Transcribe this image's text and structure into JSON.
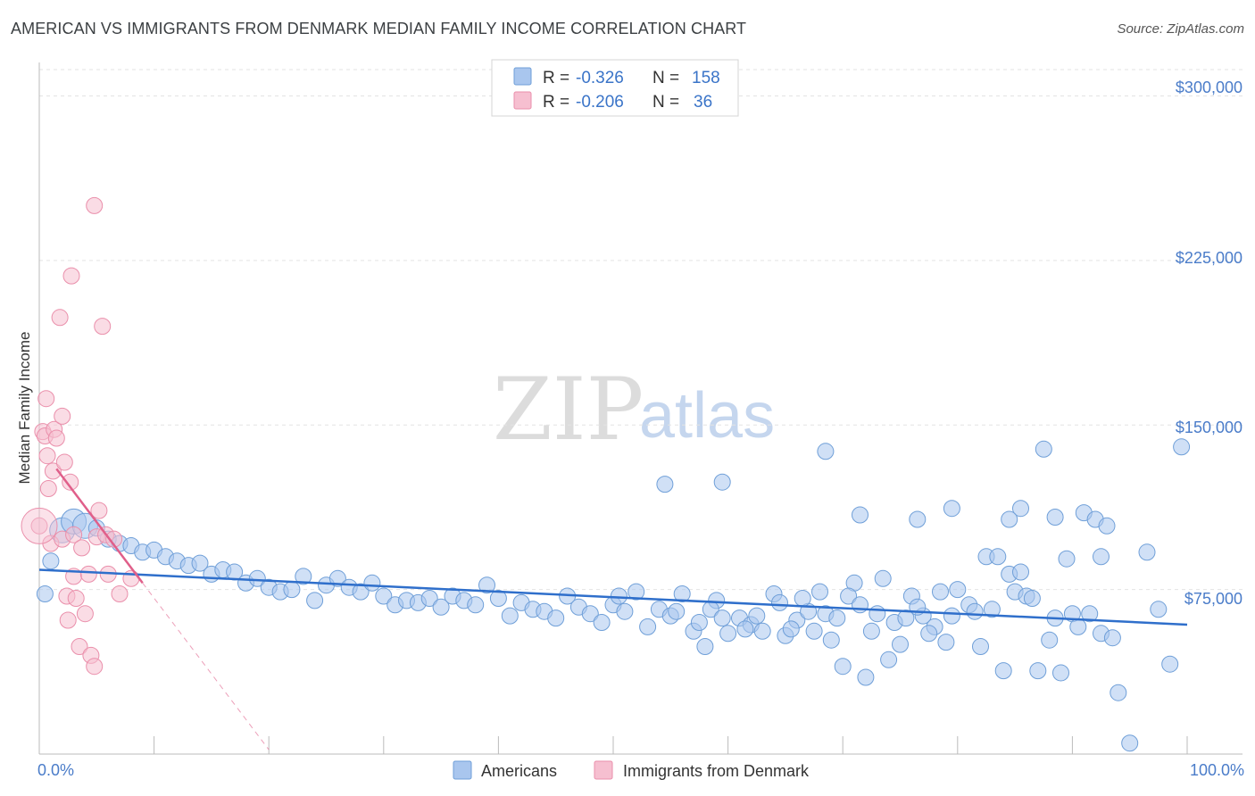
{
  "title": "AMERICAN VS IMMIGRANTS FROM DENMARK MEDIAN FAMILY INCOME CORRELATION CHART",
  "source": "Source: ZipAtlas.com",
  "watermark": {
    "part1": "ZIP",
    "part2": "atlas"
  },
  "legend": {
    "rows": [
      {
        "r_label": "R =",
        "r_value": "-0.326",
        "n_label": "N =",
        "n_value": "158"
      },
      {
        "r_label": "R =",
        "r_value": "-0.206",
        "n_label": "N =",
        "n_value": "36"
      }
    ]
  },
  "bottom_legend": {
    "americans": "Americans",
    "denmark": "Immigrants from Denmark"
  },
  "colors": {
    "blue_fill": "#a9c6ee",
    "blue_stroke": "#6f9fd8",
    "blue_line": "#2f6fcb",
    "pink_fill": "#f6bfd0",
    "pink_stroke": "#ea8fab",
    "pink_line": "#e05f8a",
    "grid": "#e3e3e3",
    "axis_text": "#4a7cc9"
  },
  "chart_data": {
    "type": "scatter",
    "title": "AMERICAN VS IMMIGRANTS FROM DENMARK MEDIAN FAMILY INCOME CORRELATION CHART",
    "xlabel": "",
    "ylabel": "Median Family Income",
    "xlim": [
      0,
      100
    ],
    "ylim": [
      0,
      312000
    ],
    "x_tick_labels": [
      "0.0%",
      "100.0%"
    ],
    "y_ticks": [
      75000,
      150000,
      225000,
      300000
    ],
    "y_tick_labels": [
      "$75,000",
      "$150,000",
      "$225,000",
      "$300,000"
    ],
    "series": [
      {
        "name": "Americans",
        "r": -0.326,
        "n": 158,
        "trend": {
          "x0": 0,
          "y0": 84000,
          "x1": 100,
          "y1": 59000
        },
        "points": [
          [
            0.5,
            73000
          ],
          [
            1,
            88000
          ],
          [
            2,
            102000
          ],
          [
            3,
            106000
          ],
          [
            4,
            104000
          ],
          [
            5,
            103000
          ],
          [
            6,
            98000
          ],
          [
            7,
            96000
          ],
          [
            8,
            95000
          ],
          [
            9,
            92000
          ],
          [
            10,
            93000
          ],
          [
            11,
            90000
          ],
          [
            12,
            88000
          ],
          [
            13,
            86000
          ],
          [
            14,
            87000
          ],
          [
            15,
            82000
          ],
          [
            16,
            84000
          ],
          [
            17,
            83000
          ],
          [
            18,
            78000
          ],
          [
            19,
            80000
          ],
          [
            20,
            76000
          ],
          [
            21,
            74000
          ],
          [
            22,
            75000
          ],
          [
            23,
            81000
          ],
          [
            24,
            70000
          ],
          [
            25,
            77000
          ],
          [
            26,
            80000
          ],
          [
            27,
            76000
          ],
          [
            28,
            74000
          ],
          [
            29,
            78000
          ],
          [
            30,
            72000
          ],
          [
            31,
            68000
          ],
          [
            32,
            70000
          ],
          [
            33,
            69000
          ],
          [
            34,
            71000
          ],
          [
            35,
            67000
          ],
          [
            36,
            72000
          ],
          [
            37,
            70000
          ],
          [
            38,
            68000
          ],
          [
            39,
            77000
          ],
          [
            40,
            71000
          ],
          [
            41,
            63000
          ],
          [
            42,
            69000
          ],
          [
            43,
            66000
          ],
          [
            44,
            65000
          ],
          [
            45,
            62000
          ],
          [
            46,
            72000
          ],
          [
            47,
            67000
          ],
          [
            48,
            64000
          ],
          [
            49,
            60000
          ],
          [
            50,
            68000
          ],
          [
            51,
            65000
          ],
          [
            52,
            74000
          ],
          [
            53,
            58000
          ],
          [
            54,
            66000
          ],
          [
            55,
            63000
          ],
          [
            56,
            73000
          ],
          [
            57,
            56000
          ],
          [
            58,
            49000
          ],
          [
            59,
            70000
          ],
          [
            60,
            55000
          ],
          [
            61,
            62000
          ],
          [
            62,
            59000
          ],
          [
            63,
            56000
          ],
          [
            64,
            73000
          ],
          [
            65,
            54000
          ],
          [
            66,
            61000
          ],
          [
            67,
            65000
          ],
          [
            68,
            74000
          ],
          [
            69,
            52000
          ],
          [
            70,
            40000
          ],
          [
            71,
            78000
          ],
          [
            72,
            35000
          ],
          [
            73,
            64000
          ],
          [
            74,
            43000
          ],
          [
            75,
            50000
          ],
          [
            76,
            72000
          ],
          [
            77,
            63000
          ],
          [
            78,
            58000
          ],
          [
            79,
            51000
          ],
          [
            80,
            75000
          ],
          [
            81,
            68000
          ],
          [
            82,
            49000
          ],
          [
            83,
            66000
          ],
          [
            84,
            38000
          ],
          [
            85,
            74000
          ],
          [
            86,
            72000
          ],
          [
            87,
            38000
          ],
          [
            88,
            52000
          ],
          [
            89,
            37000
          ],
          [
            90,
            64000
          ],
          [
            91,
            110000
          ],
          [
            92,
            107000
          ],
          [
            93,
            104000
          ],
          [
            94,
            28000
          ],
          [
            95,
            5000
          ],
          [
            50.5,
            72000
          ],
          [
            55.5,
            65000
          ],
          [
            57.5,
            60000
          ],
          [
            58.5,
            66000
          ],
          [
            59.5,
            62000
          ],
          [
            61.5,
            57000
          ],
          [
            62.5,
            63000
          ],
          [
            64.5,
            69000
          ],
          [
            65.5,
            57000
          ],
          [
            66.5,
            71000
          ],
          [
            67.5,
            56000
          ],
          [
            68.5,
            64000
          ],
          [
            69.5,
            62000
          ],
          [
            70.5,
            72000
          ],
          [
            71.5,
            68000
          ],
          [
            72.5,
            56000
          ],
          [
            73.5,
            80000
          ],
          [
            74.5,
            60000
          ],
          [
            75.5,
            62000
          ],
          [
            76.5,
            67000
          ],
          [
            77.5,
            55000
          ],
          [
            78.5,
            74000
          ],
          [
            79.5,
            63000
          ],
          [
            81.5,
            65000
          ],
          [
            82.5,
            90000
          ],
          [
            83.5,
            90000
          ],
          [
            84.5,
            82000
          ],
          [
            85.5,
            83000
          ],
          [
            86.5,
            71000
          ],
          [
            88.5,
            62000
          ],
          [
            89.5,
            89000
          ],
          [
            90.5,
            58000
          ],
          [
            91.5,
            64000
          ],
          [
            92.5,
            90000
          ],
          [
            87.5,
            139000
          ],
          [
            85.5,
            112000
          ],
          [
            54.5,
            123000
          ],
          [
            59.5,
            124000
          ],
          [
            68.5,
            138000
          ],
          [
            71.5,
            109000
          ],
          [
            76.5,
            107000
          ],
          [
            79.5,
            112000
          ],
          [
            84.5,
            107000
          ],
          [
            88.5,
            108000
          ],
          [
            92.5,
            55000
          ],
          [
            93.5,
            53000
          ],
          [
            96.5,
            92000
          ],
          [
            97.5,
            66000
          ],
          [
            98.5,
            41000
          ],
          [
            99.5,
            140000
          ]
        ]
      },
      {
        "name": "Immigrants from Denmark",
        "r": -0.206,
        "n": 36,
        "trend": {
          "x0": 1.5,
          "y0": 130000,
          "x1": 9,
          "y1": 78000
        },
        "trend_extended": {
          "x0": 9,
          "y0": 78000,
          "x1": 20,
          "y1": 2000
        },
        "points": [
          [
            0,
            104000
          ],
          [
            0.3,
            147000
          ],
          [
            0.5,
            145000
          ],
          [
            0.6,
            162000
          ],
          [
            0.7,
            136000
          ],
          [
            0.8,
            121000
          ],
          [
            1,
            96000
          ],
          [
            1.2,
            129000
          ],
          [
            1.3,
            148000
          ],
          [
            1.5,
            144000
          ],
          [
            1.8,
            199000
          ],
          [
            2,
            98000
          ],
          [
            2,
            154000
          ],
          [
            2.2,
            133000
          ],
          [
            2.4,
            72000
          ],
          [
            2.5,
            61000
          ],
          [
            2.7,
            124000
          ],
          [
            2.8,
            218000
          ],
          [
            3,
            100000
          ],
          [
            3,
            81000
          ],
          [
            3.2,
            71000
          ],
          [
            3.5,
            49000
          ],
          [
            3.7,
            94000
          ],
          [
            4,
            64000
          ],
          [
            4.3,
            82000
          ],
          [
            4.5,
            45000
          ],
          [
            4.8,
            40000
          ],
          [
            4.8,
            250000
          ],
          [
            5,
            99000
          ],
          [
            5.2,
            111000
          ],
          [
            5.5,
            195000
          ],
          [
            5.8,
            100000
          ],
          [
            6,
            82000
          ],
          [
            6.5,
            98000
          ],
          [
            7,
            73000
          ],
          [
            8,
            80000
          ]
        ]
      }
    ]
  }
}
